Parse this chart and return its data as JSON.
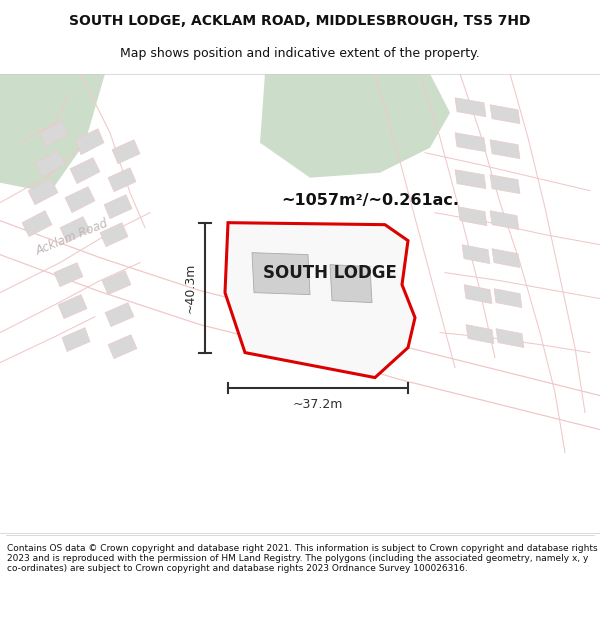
{
  "title": "SOUTH LODGE, ACKLAM ROAD, MIDDLESBROUGH, TS5 7HD",
  "subtitle": "Map shows position and indicative extent of the property.",
  "footer": "Contains OS data © Crown copyright and database right 2021. This information is subject to Crown copyright and database rights 2023 and is reproduced with the permission of HM Land Registry. The polygons (including the associated geometry, namely x, y co-ordinates) are subject to Crown copyright and database rights 2023 Ordnance Survey 100026316.",
  "area_label": "~1057m²/~0.261ac.",
  "property_label": "SOUTH LODGE",
  "width_label": "~37.2m",
  "height_label": "~40.3m",
  "bg_color": "#ffffff",
  "map_bg": "#f2f2f2",
  "road_color_light": "#f0c8c8",
  "green_color": "#ccdeca",
  "property_outline_color": "#dd0000",
  "property_fill": "#f8f8f8",
  "building_fill": "#d8d8d8",
  "road_label_color": "#c0b8b8",
  "dimension_color": "#303030",
  "title_fontsize": 10,
  "subtitle_fontsize": 9,
  "footer_fontsize": 6.5
}
